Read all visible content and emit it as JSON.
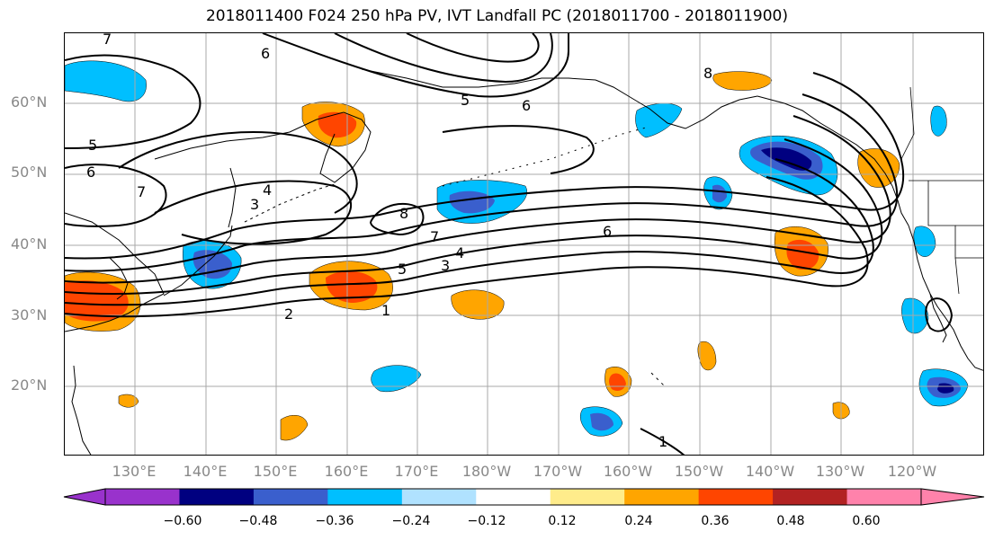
{
  "title": "2018011400 F024 250 hPa PV, IVT Landfall PC (2018011700 - 2018011900)",
  "lat_labels": [
    "60°N",
    "50°N",
    "40°N",
    "30°N",
    "20°N"
  ],
  "lon_labels": [
    "130°E",
    "140°E",
    "150°E",
    "160°E",
    "170°E",
    "180°W",
    "170°W",
    "160°W",
    "150°W",
    "140°W",
    "130°W",
    "120°W"
  ],
  "contour_labels": [
    "7",
    "6",
    "5",
    "6",
    "7",
    "4",
    "3",
    "8",
    "7",
    "5",
    "4",
    "3",
    "2",
    "1",
    "6",
    "5",
    "6",
    "8",
    "1"
  ],
  "colorbar": {
    "colors": [
      "#9932cc",
      "#000080",
      "#3a5fcd",
      "#00bfff",
      "#b0e2ff",
      "#ffffff",
      "#ffec8b",
      "#ffa500",
      "#ff4500",
      "#b22222",
      "#ff82ab"
    ],
    "tick_labels": [
      "−0.60",
      "−0.48",
      "−0.36",
      "−0.24",
      "−0.12",
      "0.12",
      "0.24",
      "0.36",
      "0.48",
      "0.60"
    ]
  },
  "colors": {
    "grid": "#a9a9a9",
    "axis_label": "#888888",
    "contour": "#000000",
    "coast": "#000000"
  }
}
